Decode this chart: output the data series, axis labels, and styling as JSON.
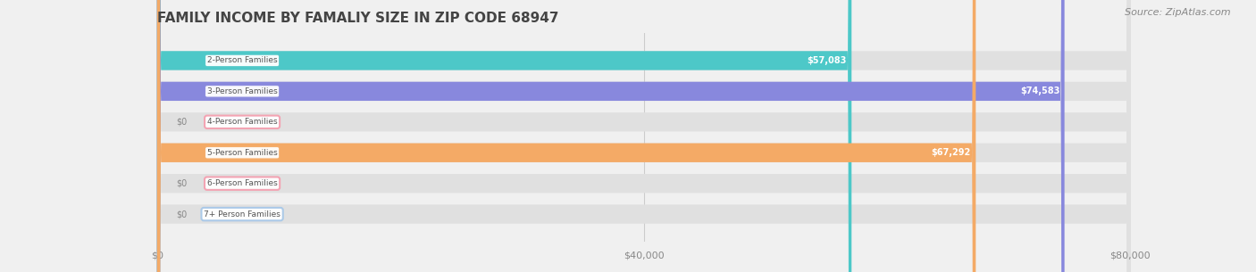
{
  "title": "FAMILY INCOME BY FAMALIY SIZE IN ZIP CODE 68947",
  "source": "Source: ZipAtlas.com",
  "categories": [
    "2-Person Families",
    "3-Person Families",
    "4-Person Families",
    "5-Person Families",
    "6-Person Families",
    "7+ Person Families"
  ],
  "values": [
    57083,
    74583,
    0,
    67292,
    0,
    0
  ],
  "bar_colors": [
    "#4dc8c8",
    "#8888dd",
    "#f4a0b0",
    "#f4aa66",
    "#f4a0b0",
    "#a8c8e8"
  ],
  "label_colors": [
    "#4dc8c8",
    "#8888dd",
    "#f4a0b0",
    "#f4aa66",
    "#f4a0b0",
    "#a8c8e8"
  ],
  "xlim": [
    0,
    80000
  ],
  "xticks": [
    0,
    40000,
    80000
  ],
  "xticklabels": [
    "$0",
    "$40,000",
    "$80,000"
  ],
  "background_color": "#f0f0f0",
  "bar_background_color": "#e8e8e8",
  "title_fontsize": 11,
  "source_fontsize": 8,
  "value_label_color": "#ffffff",
  "figsize": [
    14.06,
    3.05
  ],
  "dpi": 100
}
